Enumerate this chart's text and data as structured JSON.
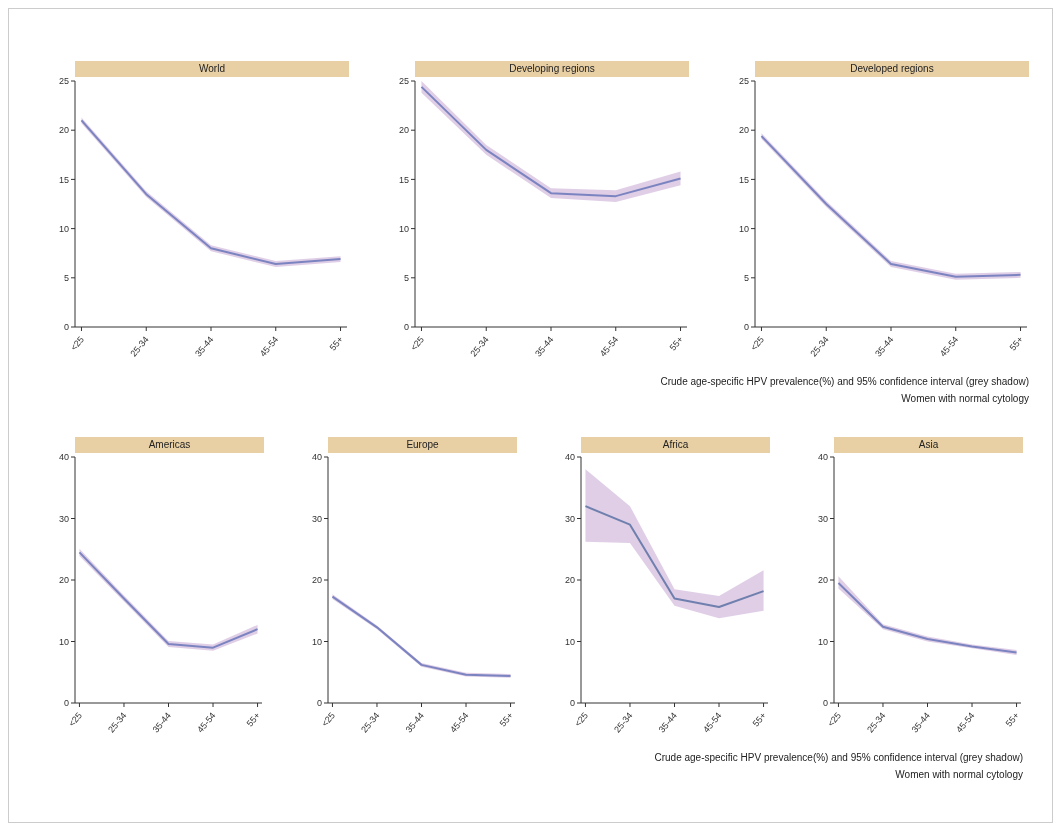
{
  "chart_data": [
    {
      "type": "line",
      "title": "World",
      "categories": [
        "<25",
        "25-34",
        "35-44",
        "45-54",
        "55+"
      ],
      "ylim": [
        0,
        25
      ],
      "yticks": [
        0,
        5,
        10,
        15,
        20,
        25
      ],
      "series": [
        {
          "color": "#7b84c0",
          "values": [
            21,
            13.5,
            8,
            6.4,
            6.9
          ],
          "lower": [
            20.7,
            13.2,
            7.7,
            6.1,
            6.6
          ],
          "upper": [
            21.3,
            13.8,
            8.3,
            6.7,
            7.2
          ]
        }
      ]
    },
    {
      "type": "line",
      "title": "Developing regions",
      "categories": [
        "<25",
        "25-34",
        "35-44",
        "45-54",
        "55+"
      ],
      "ylim": [
        0,
        25
      ],
      "yticks": [
        0,
        5,
        10,
        15,
        20,
        25
      ],
      "series": [
        {
          "color": "#7b84c0",
          "values": [
            24.4,
            18,
            13.6,
            13.3,
            15.1
          ],
          "lower": [
            23.8,
            17.5,
            13.1,
            12.7,
            14.4
          ],
          "upper": [
            25,
            18.5,
            14.1,
            13.9,
            15.8
          ]
        }
      ]
    },
    {
      "type": "line",
      "title": "Developed regions",
      "categories": [
        "<25",
        "25-34",
        "35-44",
        "45-54",
        "55+"
      ],
      "ylim": [
        0,
        25
      ],
      "yticks": [
        0,
        5,
        10,
        15,
        20,
        25
      ],
      "series": [
        {
          "color": "#7b84c0",
          "values": [
            19.4,
            12.5,
            6.4,
            5.1,
            5.3
          ],
          "lower": [
            19.1,
            12.2,
            6.1,
            4.8,
            5
          ],
          "upper": [
            19.7,
            12.8,
            6.7,
            5.4,
            5.6
          ]
        }
      ],
      "annotations": [
        "Crude age-specific HPV prevalence(%) and 95% confidence interval (grey shadow)",
        "Women with normal cytology"
      ]
    },
    {
      "type": "line",
      "title": "Americas",
      "categories": [
        "<25",
        "25-34",
        "35-44",
        "45-54",
        "55+"
      ],
      "ylim": [
        0,
        40
      ],
      "yticks": [
        0,
        10,
        20,
        30,
        40
      ],
      "series": [
        {
          "color": "#7b84c0",
          "values": [
            24.5,
            17,
            9.6,
            9,
            12
          ],
          "lower": [
            23.9,
            16.5,
            9.1,
            8.5,
            11.3
          ],
          "upper": [
            25.1,
            17.5,
            10.1,
            9.5,
            12.7
          ]
        }
      ]
    },
    {
      "type": "line",
      "title": "Europe",
      "categories": [
        "<25",
        "25-34",
        "35-44",
        "45-54",
        "55+"
      ],
      "ylim": [
        0,
        40
      ],
      "yticks": [
        0,
        10,
        20,
        30,
        40
      ],
      "series": [
        {
          "color": "#7b84c0",
          "values": [
            17.3,
            12.3,
            6.2,
            4.6,
            4.4
          ],
          "lower": [
            16.9,
            12,
            5.9,
            4.3,
            4.1
          ],
          "upper": [
            17.7,
            12.6,
            6.5,
            4.9,
            4.7
          ]
        }
      ]
    },
    {
      "type": "line",
      "title": "Africa",
      "categories": [
        "<25",
        "25-34",
        "35-44",
        "45-54",
        "55+"
      ],
      "ylim": [
        0,
        40
      ],
      "yticks": [
        0,
        10,
        20,
        30,
        40
      ],
      "series": [
        {
          "color": "#6f7fae",
          "values": [
            32,
            29,
            17,
            15.6,
            18.2
          ],
          "lower": [
            26.2,
            26,
            15.8,
            13.8,
            15
          ],
          "upper": [
            38,
            32,
            18.5,
            17.4,
            21.6
          ]
        }
      ]
    },
    {
      "type": "line",
      "title": "Asia",
      "categories": [
        "<25",
        "25-34",
        "35-44",
        "45-54",
        "55+"
      ],
      "ylim": [
        0,
        40
      ],
      "yticks": [
        0,
        10,
        20,
        30,
        40
      ],
      "series": [
        {
          "color": "#7b84c0",
          "values": [
            19.5,
            12.4,
            10.4,
            9.2,
            8.2
          ],
          "lower": [
            18.6,
            12,
            10,
            8.9,
            7.8
          ],
          "upper": [
            20.6,
            12.8,
            10.8,
            9.5,
            8.6
          ]
        }
      ],
      "annotations": [
        "Crude age-specific HPV prevalence(%) and 95% confidence interval (grey shadow)",
        "Women with normal cytology"
      ]
    }
  ]
}
